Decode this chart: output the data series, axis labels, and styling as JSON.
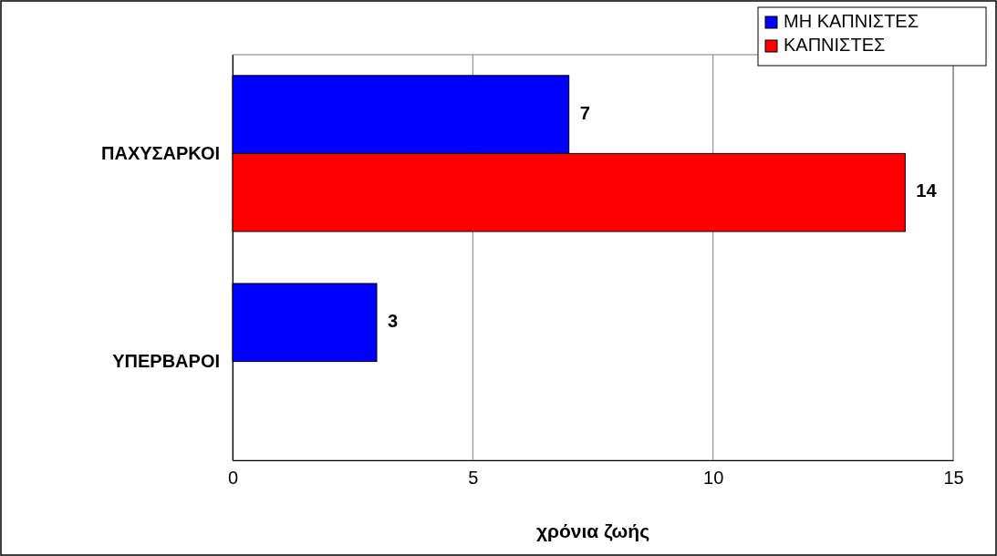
{
  "chart_data": {
    "type": "bar",
    "orientation": "horizontal",
    "xlabel": "χρόνια ζωής",
    "categories": [
      "ΠΑΧΥΣΑΡΚΟΙ",
      "ΥΠΕΡΒΑΡΟΙ"
    ],
    "series": [
      {
        "name": "ΜΗ ΚΑΠΝΙΣΤΕΣ",
        "color": "#0000ff",
        "values": [
          7,
          3
        ]
      },
      {
        "name": "ΚΑΠΝΙΣΤΕΣ",
        "color": "#ff0000",
        "values": [
          14,
          null
        ]
      }
    ],
    "xlim": [
      0,
      15
    ],
    "xticks": [
      0,
      5,
      10,
      15
    ],
    "grid": "x",
    "legend": "top right",
    "data_labels": true
  }
}
